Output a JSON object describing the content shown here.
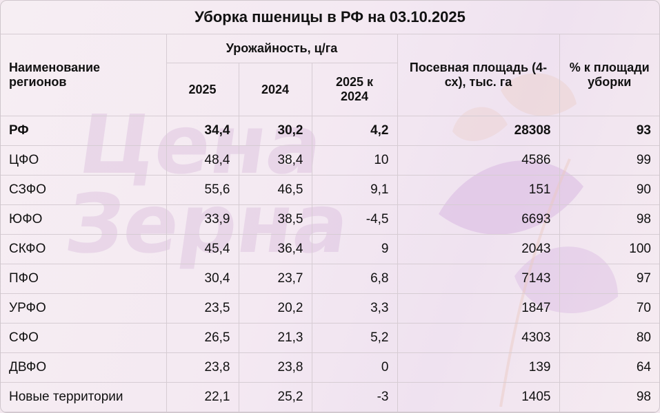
{
  "title": "Уборка пшеницы в РФ на 03.10.2025",
  "watermark": [
    "Цена",
    "Зерна"
  ],
  "headers": {
    "region": "Наименование регионов",
    "yield_group": "Урожайность, ц/га",
    "y2025": "2025",
    "y2024": "2024",
    "y_diff": "2025 к 2024",
    "area": "Посевная площадь (4-сх), тыс. га",
    "pct": "% к площади уборки"
  },
  "rows": [
    {
      "name": "РФ",
      "y2025": "34,4",
      "y2024": "30,2",
      "diff": "4,2",
      "area": "28308",
      "pct": "93"
    },
    {
      "name": "ЦФО",
      "y2025": "48,4",
      "y2024": "38,4",
      "diff": "10",
      "area": "4586",
      "pct": "99"
    },
    {
      "name": "СЗФО",
      "y2025": "55,6",
      "y2024": "46,5",
      "diff": "9,1",
      "area": "151",
      "pct": "90"
    },
    {
      "name": "ЮФО",
      "y2025": "33,9",
      "y2024": "38,5",
      "diff": "-4,5",
      "area": "6693",
      "pct": "98"
    },
    {
      "name": "СКФО",
      "y2025": "45,4",
      "y2024": "36,4",
      "diff": "9",
      "area": "2043",
      "pct": "100"
    },
    {
      "name": "ПФО",
      "y2025": "30,4",
      "y2024": "23,7",
      "diff": "6,8",
      "area": "7143",
      "pct": "97"
    },
    {
      "name": "УРФО",
      "y2025": "23,5",
      "y2024": "20,2",
      "diff": "3,3",
      "area": "1847",
      "pct": "70"
    },
    {
      "name": "СФО",
      "y2025": "26,5",
      "y2024": "21,3",
      "diff": "5,2",
      "area": "4303",
      "pct": "80"
    },
    {
      "name": "ДВФО",
      "y2025": "23,8",
      "y2024": "23,8",
      "diff": "0",
      "area": "139",
      "pct": "64"
    },
    {
      "name": "Новые территории",
      "y2025": "22,1",
      "y2024": "25,2",
      "diff": "-3",
      "area": "1405",
      "pct": "98"
    }
  ]
}
